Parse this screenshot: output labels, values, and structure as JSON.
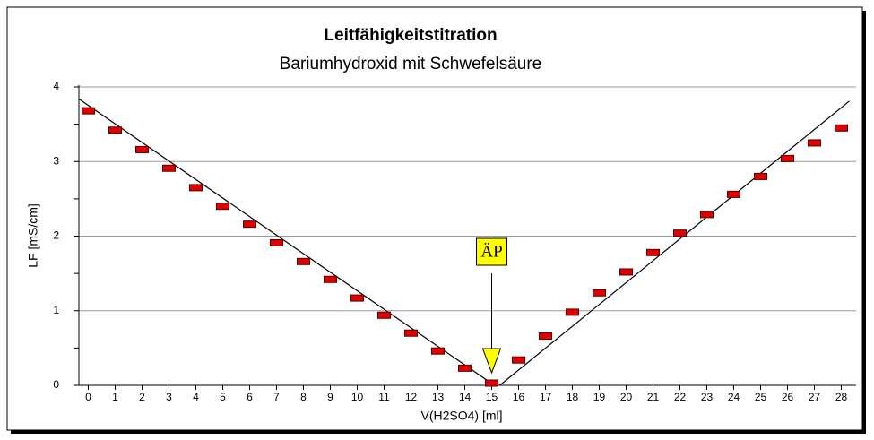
{
  "chart_data": {
    "type": "scatter",
    "title": "Leitfähigkeitstitration",
    "subtitle": "Bariumhydroxid mit Schwefelsäure",
    "xlabel": "V(H2SO4) [ml]",
    "ylabel": "LF [mS/cm]",
    "x": [
      0,
      1,
      2,
      3,
      4,
      5,
      6,
      7,
      8,
      9,
      10,
      11,
      12,
      13,
      14,
      15,
      16,
      17,
      18,
      19,
      20,
      21,
      22,
      23,
      24,
      25,
      26,
      27,
      28
    ],
    "values": [
      3.68,
      3.42,
      3.16,
      2.91,
      2.65,
      2.4,
      2.16,
      1.91,
      1.66,
      1.42,
      1.17,
      0.94,
      0.7,
      0.46,
      0.23,
      0.03,
      0.34,
      0.66,
      0.98,
      1.24,
      1.52,
      1.78,
      2.04,
      2.29,
      2.56,
      2.8,
      3.04,
      3.25,
      3.45
    ],
    "color": "#e00000",
    "lines": [
      {
        "x": [
          -0.35,
          15.1
        ],
        "y": [
          3.84,
          0
        ]
      },
      {
        "x": [
          15.3,
          28.3
        ],
        "y": [
          0,
          3.81
        ]
      }
    ],
    "annotation": {
      "text": "ÄP",
      "x": 15,
      "y": 0
    },
    "xlim": [
      -0.35,
      28.55
    ],
    "ylim": [
      0,
      4
    ],
    "xticks": [
      0,
      1,
      2,
      3,
      4,
      5,
      6,
      7,
      8,
      9,
      10,
      11,
      12,
      13,
      14,
      15,
      16,
      17,
      18,
      19,
      20,
      21,
      22,
      23,
      24,
      25,
      26,
      27,
      28
    ],
    "yticks": [
      0,
      1,
      2,
      3,
      4
    ],
    "yminorticks": [
      0.5,
      1.5,
      2.5,
      3.5
    ],
    "grid": true
  }
}
